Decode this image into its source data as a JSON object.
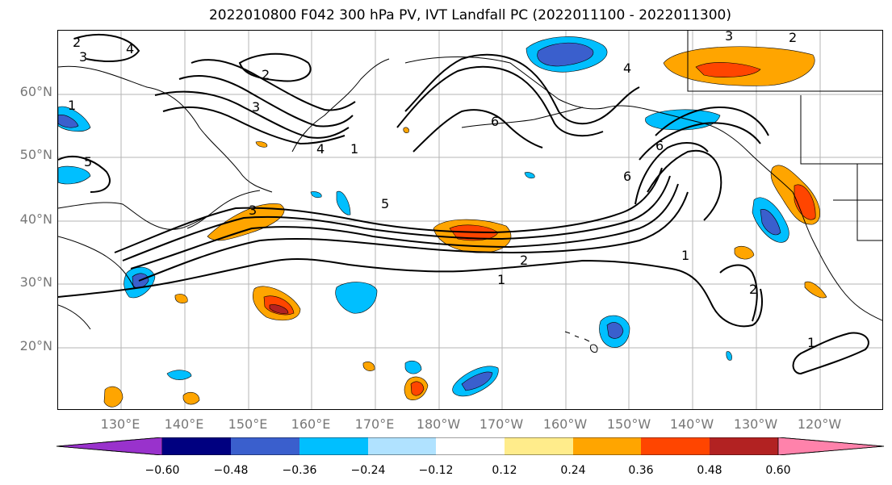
{
  "title": "2022010800 F042 300 hPa PV, IVT Landfall PC (2022011100 - 2022011300)",
  "lat_labels": [
    "60°N",
    "50°N",
    "40°N",
    "30°N",
    "20°N"
  ],
  "lon_labels": [
    "130°E",
    "140°E",
    "150°E",
    "160°E",
    "170°E",
    "180°W",
    "170°W",
    "160°W",
    "150°W",
    "140°W",
    "130°W",
    "120°W"
  ],
  "contour_labels": [
    "2",
    "3",
    "4",
    "1",
    "2",
    "3",
    "5",
    "3",
    "4",
    "1",
    "5",
    "2",
    "1",
    "6",
    "4",
    "6",
    "6",
    "1",
    "2",
    "1",
    "3",
    "2"
  ],
  "colorbar": {
    "ticks": [
      "−0.60",
      "−0.48",
      "−0.36",
      "−0.24",
      "−0.12",
      "0.12",
      "0.24",
      "0.36",
      "0.48",
      "0.60"
    ],
    "colors": [
      "#9932cc",
      "#000080",
      "#3a5fcd",
      "#00bfff",
      "#b0e2ff",
      "#ffffff",
      "#ffec8b",
      "#ffa500",
      "#ff4500",
      "#b22222",
      "#ff82ab"
    ]
  }
}
